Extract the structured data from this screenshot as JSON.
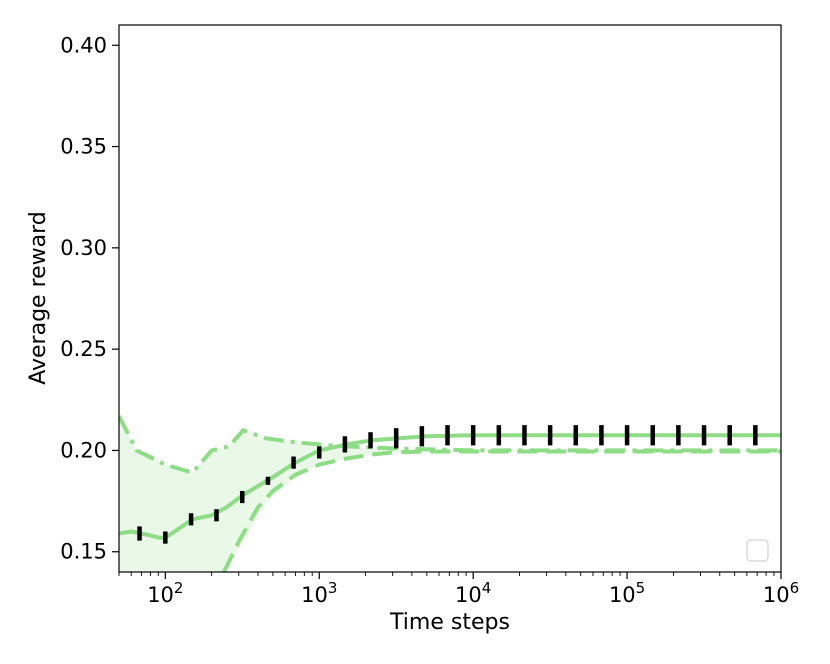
{
  "chart_data": {
    "type": "line",
    "xscale": "log",
    "xlabel": "Time steps",
    "ylabel": "Average reward",
    "xlim": [
      50,
      1000000
    ],
    "ylim": [
      0.14,
      0.41
    ],
    "grid": false,
    "legend": {
      "placement": "bottom-right",
      "entries": []
    },
    "x_ticks": [
      {
        "value": 100,
        "base": "10",
        "exp": "2"
      },
      {
        "value": 1000,
        "base": "10",
        "exp": "3"
      },
      {
        "value": 10000,
        "base": "10",
        "exp": "4"
      },
      {
        "value": 100000,
        "base": "10",
        "exp": "5"
      },
      {
        "value": 1000000,
        "base": "10",
        "exp": "6"
      }
    ],
    "y_ticks": [
      {
        "value": 0.15,
        "label": "0.15"
      },
      {
        "value": 0.2,
        "label": "0.20"
      },
      {
        "value": 0.25,
        "label": "0.25"
      },
      {
        "value": 0.3,
        "label": "0.30"
      },
      {
        "value": 0.35,
        "label": "0.35"
      },
      {
        "value": 0.4,
        "label": "0.40"
      }
    ],
    "colors": {
      "line": "#8fdc87",
      "band": "#eaf8e8",
      "errorbar": "#000000"
    },
    "series": [
      {
        "style": "solid",
        "x": [
          50,
          60,
          70,
          80,
          90,
          100,
          115,
          150,
          200,
          250,
          320,
          480,
          700,
          1000,
          1500,
          2200,
          3300,
          5000,
          10000,
          100000,
          1000000
        ],
        "y": [
          0.159,
          0.16,
          0.159,
          0.158,
          0.157,
          0.157,
          0.16,
          0.166,
          0.168,
          0.172,
          0.178,
          0.186,
          0.194,
          0.2,
          0.203,
          0.205,
          0.206,
          0.207,
          0.2075,
          0.2075,
          0.2075
        ]
      },
      {
        "style": "dashdot",
        "x": [
          50,
          65,
          100,
          150,
          200,
          260,
          320,
          450,
          700,
          1000,
          1500,
          3000,
          10000,
          100000,
          1000000
        ],
        "y": [
          0.217,
          0.2,
          0.193,
          0.189,
          0.2,
          0.202,
          0.21,
          0.206,
          0.204,
          0.203,
          0.202,
          0.201,
          0.2,
          0.2,
          0.2
        ]
      },
      {
        "style": "dashed",
        "x": [
          240,
          300,
          400,
          500,
          700,
          1000,
          1500,
          2200,
          3000,
          5000,
          10000,
          100000,
          1000000
        ],
        "y": [
          0.14,
          0.155,
          0.172,
          0.18,
          0.188,
          0.193,
          0.196,
          0.198,
          0.199,
          0.1995,
          0.1995,
          0.1995,
          0.1995
        ]
      }
    ],
    "band": {
      "x": [
        50,
        65,
        100,
        150,
        200,
        240,
        260,
        320,
        450,
        700,
        1000,
        1500,
        3000,
        10000,
        100000,
        1000000
      ],
      "upper": [
        0.217,
        0.2,
        0.193,
        0.189,
        0.2,
        0.201,
        0.202,
        0.21,
        0.206,
        0.204,
        0.203,
        0.202,
        0.201,
        0.2,
        0.2,
        0.2
      ],
      "lower": [
        0.14,
        0.14,
        0.14,
        0.14,
        0.14,
        0.14,
        0.143,
        0.155,
        0.174,
        0.187,
        0.193,
        0.196,
        0.199,
        0.1995,
        0.1995,
        0.1995
      ]
    },
    "error_bars": [
      {
        "x": 68,
        "y": 0.159,
        "err": 0.0035
      },
      {
        "x": 100,
        "y": 0.157,
        "err": 0.003
      },
      {
        "x": 147,
        "y": 0.166,
        "err": 0.003
      },
      {
        "x": 215,
        "y": 0.168,
        "err": 0.003
      },
      {
        "x": 316,
        "y": 0.177,
        "err": 0.003
      },
      {
        "x": 464,
        "y": 0.185,
        "err": 0.002
      },
      {
        "x": 681,
        "y": 0.194,
        "err": 0.003
      },
      {
        "x": 1000,
        "y": 0.199,
        "err": 0.003
      },
      {
        "x": 1468,
        "y": 0.203,
        "err": 0.004
      },
      {
        "x": 2154,
        "y": 0.205,
        "err": 0.004
      },
      {
        "x": 3162,
        "y": 0.206,
        "err": 0.005
      },
      {
        "x": 4642,
        "y": 0.207,
        "err": 0.005
      },
      {
        "x": 6813,
        "y": 0.2075,
        "err": 0.005
      },
      {
        "x": 10000,
        "y": 0.2075,
        "err": 0.005
      },
      {
        "x": 14678,
        "y": 0.2075,
        "err": 0.005
      },
      {
        "x": 21544,
        "y": 0.2075,
        "err": 0.005
      },
      {
        "x": 31623,
        "y": 0.2075,
        "err": 0.005
      },
      {
        "x": 46416,
        "y": 0.2075,
        "err": 0.005
      },
      {
        "x": 68129,
        "y": 0.2075,
        "err": 0.005
      },
      {
        "x": 100000,
        "y": 0.2075,
        "err": 0.005
      },
      {
        "x": 146780,
        "y": 0.2075,
        "err": 0.005
      },
      {
        "x": 215440,
        "y": 0.2075,
        "err": 0.005
      },
      {
        "x": 316230,
        "y": 0.2075,
        "err": 0.005
      },
      {
        "x": 464160,
        "y": 0.2075,
        "err": 0.005
      },
      {
        "x": 681290,
        "y": 0.2075,
        "err": 0.005
      }
    ]
  }
}
